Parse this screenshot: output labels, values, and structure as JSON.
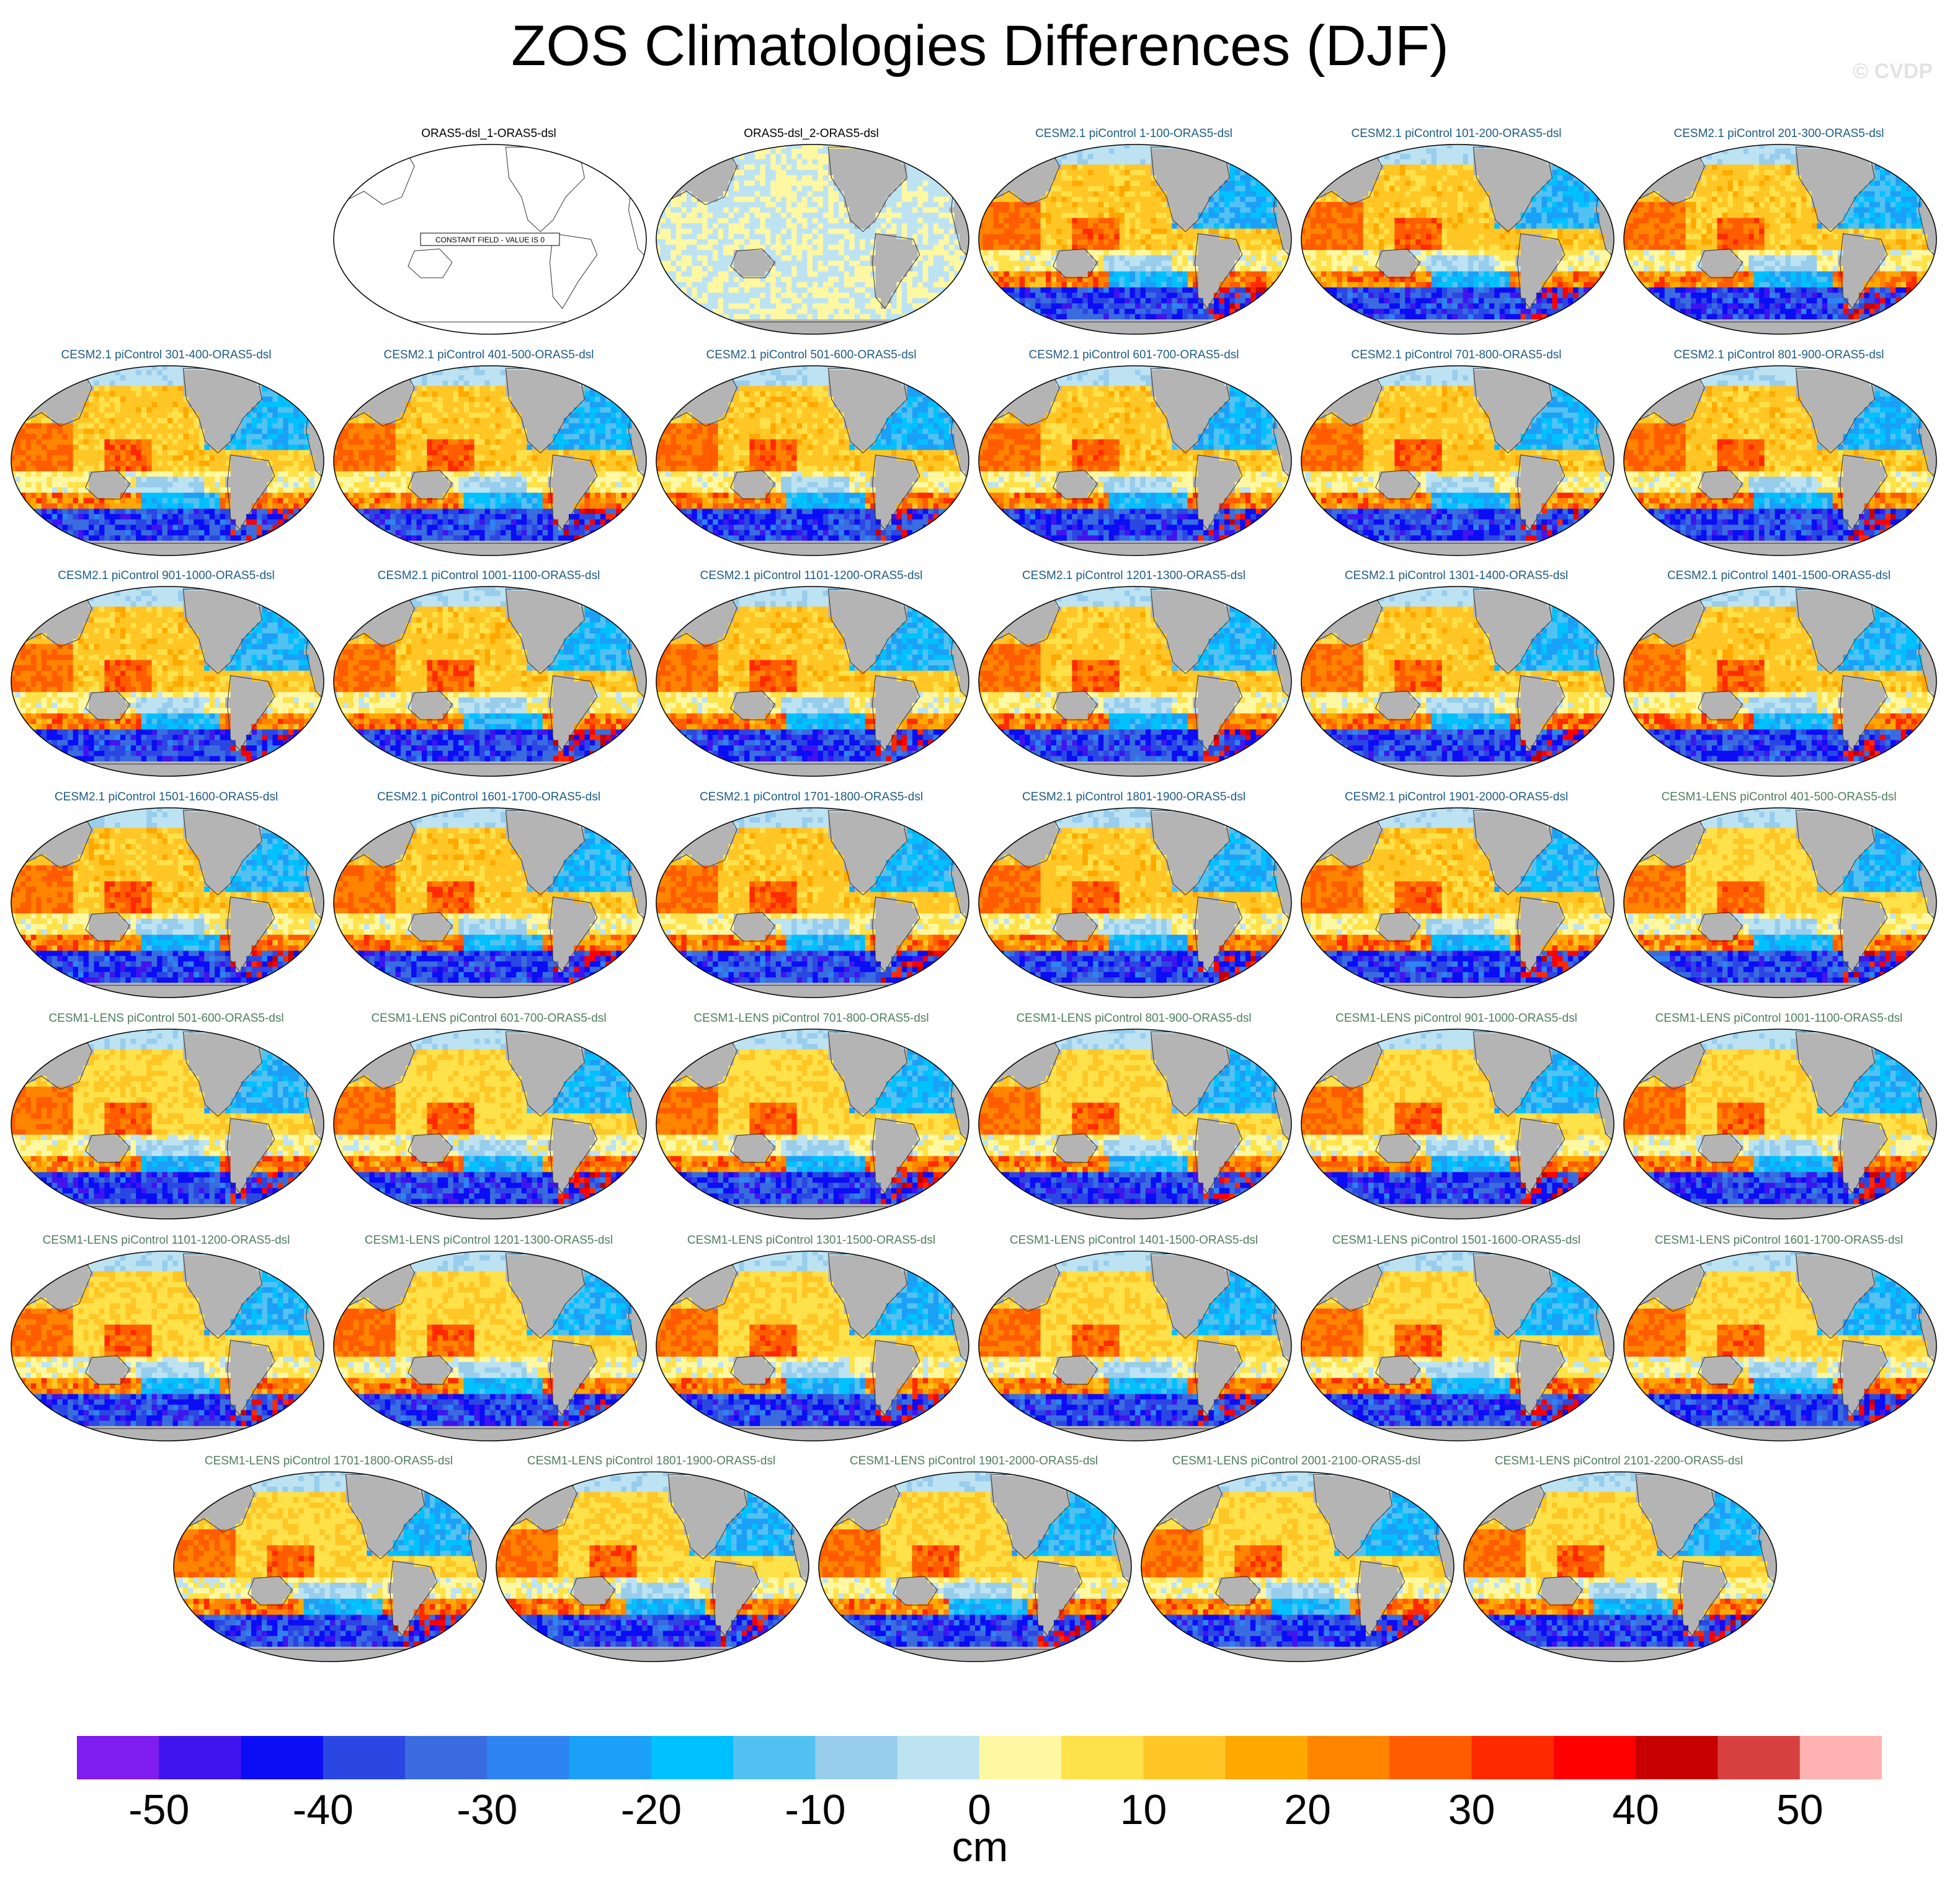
{
  "title": "ZOS Climatologies Differences (DJF)",
  "watermark": "© CVDP",
  "chart_data": {
    "type": "heatmap",
    "map_type": "global ocean maps (robinson projection, pacific-centered)",
    "season": "DJF",
    "colorbar": {
      "unit": "cm",
      "ticks": [
        -50,
        -40,
        -30,
        -20,
        -10,
        0,
        10,
        20,
        30,
        40,
        50
      ],
      "bin_edges": [
        -55,
        -50,
        -45,
        -40,
        -35,
        -30,
        -25,
        -20,
        -15,
        -10,
        -5,
        0,
        5,
        10,
        15,
        20,
        25,
        30,
        35,
        40,
        45,
        50,
        55
      ],
      "colors": [
        "#7f1cf0",
        "#4014ee",
        "#0b0df5",
        "#2b47e3",
        "#3a6ce0",
        "#2e84f2",
        "#1ba0f7",
        "#00c1ff",
        "#51c2f2",
        "#98cdec",
        "#bde3f3",
        "#fff8a3",
        "#ffe14a",
        "#ffc625",
        "#ffa800",
        "#ff8400",
        "#ff5c00",
        "#ff2a00",
        "#ff0000",
        "#c80000",
        "#d84040",
        "#ffb2b2"
      ]
    },
    "panels": [
      {
        "title": "ORAS5-dsl_1-ORAS5-dsl",
        "group": "obs",
        "row": 0,
        "col": 1,
        "style": "constant",
        "note": "CONSTANT FIELD - VALUE IS 0"
      },
      {
        "title": "ORAS5-dsl_2-ORAS5-dsl",
        "group": "obs",
        "row": 0,
        "col": 2,
        "style": "small"
      },
      {
        "title": "CESM2.1 piControl 1-100-ORAS5-dsl",
        "group": "c2",
        "row": 0,
        "col": 3,
        "style": "cesm2"
      },
      {
        "title": "CESM2.1 piControl 101-200-ORAS5-dsl",
        "group": "c2",
        "row": 0,
        "col": 4,
        "style": "cesm2"
      },
      {
        "title": "CESM2.1 piControl 201-300-ORAS5-dsl",
        "group": "c2",
        "row": 0,
        "col": 5,
        "style": "cesm2"
      },
      {
        "title": "CESM2.1 piControl 301-400-ORAS5-dsl",
        "group": "c2",
        "row": 1,
        "col": 0,
        "style": "cesm2"
      },
      {
        "title": "CESM2.1 piControl 401-500-ORAS5-dsl",
        "group": "c2",
        "row": 1,
        "col": 1,
        "style": "cesm2"
      },
      {
        "title": "CESM2.1 piControl 501-600-ORAS5-dsl",
        "group": "c2",
        "row": 1,
        "col": 2,
        "style": "cesm2"
      },
      {
        "title": "CESM2.1 piControl 601-700-ORAS5-dsl",
        "group": "c2",
        "row": 1,
        "col": 3,
        "style": "cesm2"
      },
      {
        "title": "CESM2.1 piControl 701-800-ORAS5-dsl",
        "group": "c2",
        "row": 1,
        "col": 4,
        "style": "cesm2"
      },
      {
        "title": "CESM2.1 piControl 801-900-ORAS5-dsl",
        "group": "c2",
        "row": 1,
        "col": 5,
        "style": "cesm2"
      },
      {
        "title": "CESM2.1 piControl 901-1000-ORAS5-dsl",
        "group": "c2",
        "row": 2,
        "col": 0,
        "style": "cesm2"
      },
      {
        "title": "CESM2.1 piControl 1001-1100-ORAS5-dsl",
        "group": "c2",
        "row": 2,
        "col": 1,
        "style": "cesm2"
      },
      {
        "title": "CESM2.1 piControl 1101-1200-ORAS5-dsl",
        "group": "c2",
        "row": 2,
        "col": 2,
        "style": "cesm2"
      },
      {
        "title": "CESM2.1 piControl 1201-1300-ORAS5-dsl",
        "group": "c2",
        "row": 2,
        "col": 3,
        "style": "cesm2"
      },
      {
        "title": "CESM2.1 piControl 1301-1400-ORAS5-dsl",
        "group": "c2",
        "row": 2,
        "col": 4,
        "style": "cesm2"
      },
      {
        "title": "CESM2.1 piControl 1401-1500-ORAS5-dsl",
        "group": "c2",
        "row": 2,
        "col": 5,
        "style": "cesm2"
      },
      {
        "title": "CESM2.1 piControl 1501-1600-ORAS5-dsl",
        "group": "c2",
        "row": 3,
        "col": 0,
        "style": "cesm2"
      },
      {
        "title": "CESM2.1 piControl 1601-1700-ORAS5-dsl",
        "group": "c2",
        "row": 3,
        "col": 1,
        "style": "cesm2"
      },
      {
        "title": "CESM2.1 piControl 1701-1800-ORAS5-dsl",
        "group": "c2",
        "row": 3,
        "col": 2,
        "style": "cesm2"
      },
      {
        "title": "CESM2.1 piControl 1801-1900-ORAS5-dsl",
        "group": "c2",
        "row": 3,
        "col": 3,
        "style": "cesm2"
      },
      {
        "title": "CESM2.1 piControl 1901-2000-ORAS5-dsl",
        "group": "c2",
        "row": 3,
        "col": 4,
        "style": "cesm2"
      },
      {
        "title": "CESM1-LENS piControl 401-500-ORAS5-dsl",
        "group": "c1",
        "row": 3,
        "col": 5,
        "style": "cesm1"
      },
      {
        "title": "CESM1-LENS piControl 501-600-ORAS5-dsl",
        "group": "c1",
        "row": 4,
        "col": 0,
        "style": "cesm1"
      },
      {
        "title": "CESM1-LENS piControl 601-700-ORAS5-dsl",
        "group": "c1",
        "row": 4,
        "col": 1,
        "style": "cesm1"
      },
      {
        "title": "CESM1-LENS piControl 701-800-ORAS5-dsl",
        "group": "c1",
        "row": 4,
        "col": 2,
        "style": "cesm1"
      },
      {
        "title": "CESM1-LENS piControl 801-900-ORAS5-dsl",
        "group": "c1",
        "row": 4,
        "col": 3,
        "style": "cesm1"
      },
      {
        "title": "CESM1-LENS piControl 901-1000-ORAS5-dsl",
        "group": "c1",
        "row": 4,
        "col": 4,
        "style": "cesm1"
      },
      {
        "title": "CESM1-LENS piControl 1001-1100-ORAS5-dsl",
        "group": "c1",
        "row": 4,
        "col": 5,
        "style": "cesm1"
      },
      {
        "title": "CESM1-LENS piControl 1101-1200-ORAS5-dsl",
        "group": "c1",
        "row": 5,
        "col": 0,
        "style": "cesm1"
      },
      {
        "title": "CESM1-LENS piControl 1201-1300-ORAS5-dsl",
        "group": "c1",
        "row": 5,
        "col": 1,
        "style": "cesm1"
      },
      {
        "title": "CESM1-LENS piControl 1301-1500-ORAS5-dsl",
        "group": "c1",
        "row": 5,
        "col": 2,
        "style": "cesm1"
      },
      {
        "title": "CESM1-LENS piControl 1401-1500-ORAS5-dsl",
        "group": "c1",
        "row": 5,
        "col": 3,
        "style": "cesm1"
      },
      {
        "title": "CESM1-LENS piControl 1501-1600-ORAS5-dsl",
        "group": "c1",
        "row": 5,
        "col": 4,
        "style": "cesm1"
      },
      {
        "title": "CESM1-LENS piControl 1601-1700-ORAS5-dsl",
        "group": "c1",
        "row": 5,
        "col": 5,
        "style": "cesm1"
      },
      {
        "title": "CESM1-LENS piControl 1701-1800-ORAS5-dsl",
        "group": "c1",
        "row": 6,
        "col": 0,
        "style": "cesm1"
      },
      {
        "title": "CESM1-LENS piControl 1801-1900-ORAS5-dsl",
        "group": "c1",
        "row": 6,
        "col": 1,
        "style": "cesm1"
      },
      {
        "title": "CESM1-LENS piControl 1901-2000-ORAS5-dsl",
        "group": "c1",
        "row": 6,
        "col": 2,
        "style": "cesm1"
      },
      {
        "title": "CESM1-LENS piControl 2001-2100-ORAS5-dsl",
        "group": "c1",
        "row": 6,
        "col": 3,
        "style": "cesm1"
      },
      {
        "title": "CESM1-LENS piControl 2101-2200-ORAS5-dsl",
        "group": "c1",
        "row": 6,
        "col": 4,
        "style": "cesm1"
      }
    ]
  }
}
